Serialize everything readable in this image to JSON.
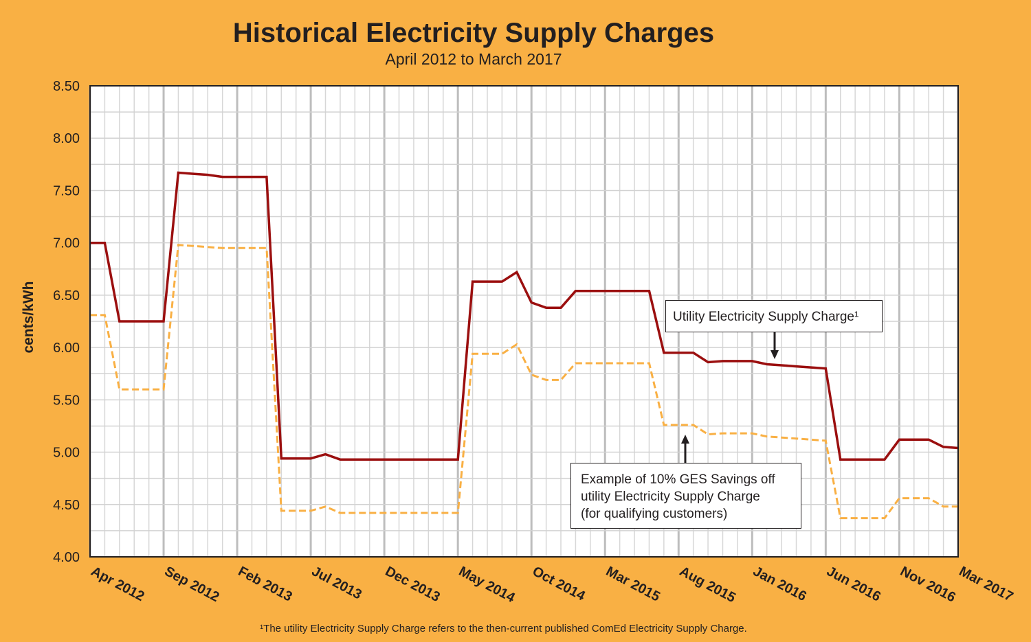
{
  "title": "Historical Electricity Supply Charges",
  "subtitle": "April 2012 to March 2017",
  "footnote": "¹The utility Electricity Supply Charge refers to the then-current published ComEd Electricity Supply Charge.",
  "annotations": {
    "utility": "Utility Electricity Supply Charge¹",
    "ges_line1": "Example of 10% GES Savings off",
    "ges_line2": "utility Electricity Supply Charge",
    "ges_line3": "(for qualifying customers)"
  },
  "colors": {
    "background": "#F9B044",
    "utility_line": "#9B0F0F",
    "ges_line": "#F9B044"
  },
  "chart_data": {
    "type": "line",
    "title": "Historical Electricity Supply Charges",
    "subtitle": "April 2012 to March 2017",
    "ylabel": "cents/kWh",
    "xlabel": "",
    "ylim": [
      4.0,
      8.5
    ],
    "yticks": [
      "4.00",
      "4.50",
      "5.00",
      "5.50",
      "6.00",
      "6.50",
      "7.00",
      "7.50",
      "8.00",
      "8.50"
    ],
    "xtick_labels": [
      "Apr 2012",
      "Sep 2012",
      "Feb 2013",
      "Jul 2013",
      "Dec 2013",
      "May 2014",
      "Oct 2014",
      "Mar 2015",
      "Aug 2015",
      "Jan 2016",
      "Jun 2016",
      "Nov 2016",
      "Mar 2017"
    ],
    "grid": true,
    "legend": "none",
    "x": [
      "Apr 2012",
      "May 2012",
      "Jun 2012",
      "Jul 2012",
      "Aug 2012",
      "Sep 2012",
      "Oct 2012",
      "Nov 2012",
      "Dec 2012",
      "Jan 2013",
      "Feb 2013",
      "Mar 2013",
      "Apr 2013",
      "May 2013",
      "Jun 2013",
      "Jul 2013",
      "Aug 2013",
      "Sep 2013",
      "Oct 2013",
      "Nov 2013",
      "Dec 2013",
      "Jan 2014",
      "Feb 2014",
      "Mar 2014",
      "Apr 2014",
      "May 2014",
      "Jun 2014",
      "Jul 2014",
      "Aug 2014",
      "Sep 2014",
      "Oct 2014",
      "Nov 2014",
      "Dec 2014",
      "Jan 2015",
      "Feb 2015",
      "Mar 2015",
      "Apr 2015",
      "May 2015",
      "Jun 2015",
      "Jul 2015",
      "Aug 2015",
      "Sep 2015",
      "Oct 2015",
      "Nov 2015",
      "Dec 2015",
      "Jan 2016",
      "Feb 2016",
      "Mar 2016",
      "Apr 2016",
      "May 2016",
      "Jun 2016",
      "Jul 2016",
      "Aug 2016",
      "Sep 2016",
      "Oct 2016",
      "Nov 2016",
      "Dec 2016",
      "Jan 2017",
      "Feb 2017",
      "Mar 2017"
    ],
    "series": [
      {
        "name": "Utility Electricity Supply Charge¹",
        "style": "solid",
        "values": [
          7.0,
          7.0,
          6.25,
          6.25,
          6.25,
          6.25,
          7.67,
          7.66,
          7.65,
          7.63,
          7.63,
          7.63,
          7.63,
          4.94,
          4.94,
          4.94,
          4.98,
          4.93,
          4.93,
          4.93,
          4.93,
          4.93,
          4.93,
          4.93,
          4.93,
          4.93,
          6.63,
          6.63,
          6.63,
          6.72,
          6.43,
          6.38,
          6.38,
          6.54,
          6.54,
          6.54,
          6.54,
          6.54,
          6.54,
          5.95,
          5.95,
          5.95,
          5.86,
          5.87,
          5.87,
          5.87,
          5.84,
          5.83,
          5.82,
          5.81,
          5.8,
          4.93,
          4.93,
          4.93,
          4.93,
          5.12,
          5.12,
          5.12,
          5.05,
          5.04
        ]
      },
      {
        "name": "Example of 10% GES Savings off utility Electricity Supply Charge (for qualifying customers)",
        "style": "dashed",
        "values": [
          6.31,
          6.31,
          5.6,
          5.6,
          5.6,
          5.6,
          6.98,
          6.97,
          6.96,
          6.95,
          6.95,
          6.95,
          6.95,
          4.44,
          4.44,
          4.44,
          4.48,
          4.42,
          4.42,
          4.42,
          4.42,
          4.42,
          4.42,
          4.42,
          4.42,
          4.42,
          5.94,
          5.94,
          5.94,
          6.03,
          5.74,
          5.69,
          5.69,
          5.85,
          5.85,
          5.85,
          5.85,
          5.85,
          5.85,
          5.26,
          5.26,
          5.26,
          5.17,
          5.18,
          5.18,
          5.18,
          5.15,
          5.14,
          5.13,
          5.12,
          5.11,
          4.37,
          4.37,
          4.37,
          4.37,
          4.56,
          4.56,
          4.56,
          4.48,
          4.48
        ]
      }
    ]
  }
}
